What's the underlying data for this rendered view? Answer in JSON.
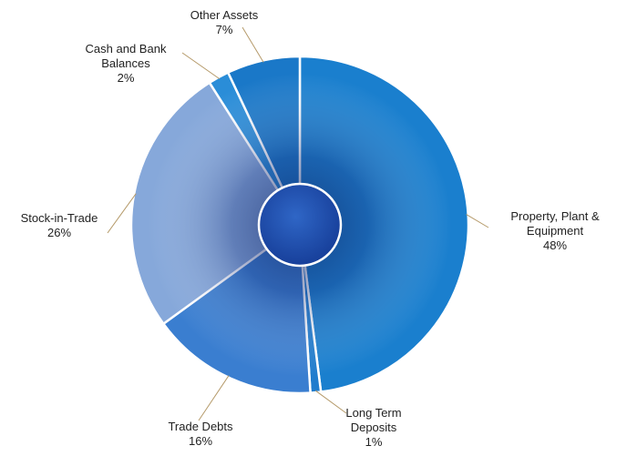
{
  "chart_data": {
    "type": "pie",
    "variant": "donut-with-center-disc",
    "legend": "none (labels with leader lines)",
    "slices": [
      {
        "label": "Property, Plant &\nEquipment",
        "value": 48,
        "value_label": "48%",
        "color": "#1a7fce"
      },
      {
        "label": "Long Term\nDeposits",
        "value": 1,
        "value_label": "1%",
        "color": "#1f7ccd"
      },
      {
        "label": "Trade Debts",
        "value": 16,
        "value_label": "16%",
        "color": "#3a7ed0"
      },
      {
        "label": "Stock-in-Trade",
        "value": 26,
        "value_label": "26%",
        "color": "#86a8da"
      },
      {
        "label": "Cash and Bank\nBalances",
        "value": 2,
        "value_label": "2%",
        "color": "#2a8dd8"
      },
      {
        "label": "Other  Assets",
        "value": 7,
        "value_label": "7%",
        "color": "#1a78c8"
      }
    ]
  }
}
